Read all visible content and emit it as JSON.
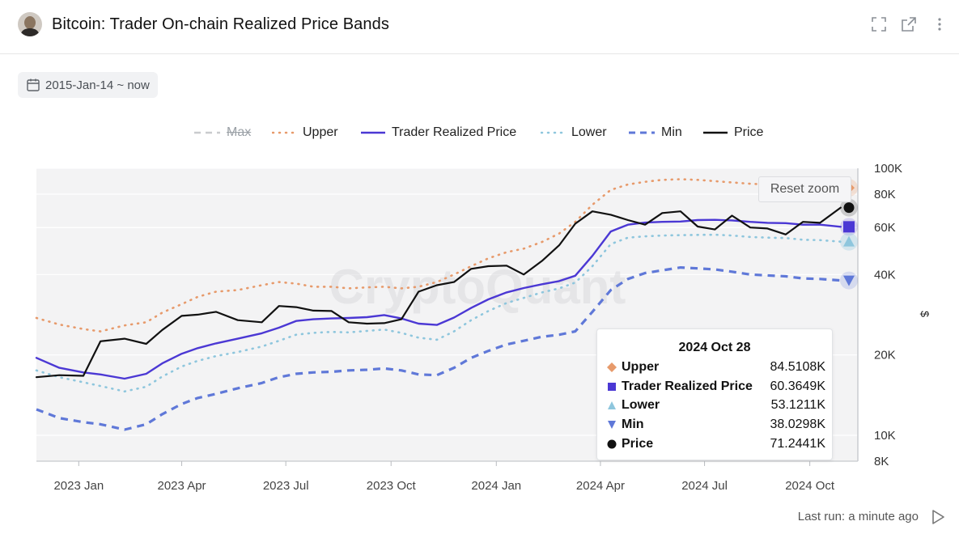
{
  "header": {
    "title": "Bitcoin: Trader On-chain Realized Price Bands",
    "icons": [
      "expand-icon",
      "external-link-icon",
      "more-vertical-icon"
    ]
  },
  "date_range": {
    "label": "2015-Jan-14 ~ now",
    "icon": "calendar-icon"
  },
  "reset_zoom_label": "Reset zoom",
  "watermark": "CryptoQuant",
  "tooltip": {
    "date": "2024 Oct 28",
    "rows": [
      {
        "name": "Upper",
        "value": "84.5108K",
        "marker": "diamond",
        "color": "#e79a6b"
      },
      {
        "name": "Trader Realized Price",
        "value": "60.3649K",
        "marker": "square",
        "color": "#4b38d4"
      },
      {
        "name": "Lower",
        "value": "53.1211K",
        "marker": "triangle-up",
        "color": "#8ec6dd"
      },
      {
        "name": "Min",
        "value": "38.0298K",
        "marker": "triangle-down",
        "color": "#5f78d8"
      },
      {
        "name": "Price",
        "value": "71.2441K",
        "marker": "circle",
        "color": "#111111"
      }
    ]
  },
  "footer": {
    "last_run": "Last run: a minute ago",
    "icon": "play-icon"
  },
  "chart_data": {
    "type": "line",
    "title": "Bitcoin: Trader On-chain Realized Price Bands",
    "xlabel": "",
    "ylabel": "$",
    "y_scale": "log",
    "ylim": [
      8000,
      100000
    ],
    "xlim": [
      "2022-11-25",
      "2024-11-12"
    ],
    "y_ticks": [
      {
        "value": 100000,
        "label": "100K"
      },
      {
        "value": 80000,
        "label": "80K"
      },
      {
        "value": 60000,
        "label": "60K"
      },
      {
        "value": 40000,
        "label": "40K"
      },
      {
        "value": 20000,
        "label": "20K"
      },
      {
        "value": 10000,
        "label": "10K"
      },
      {
        "value": 8000,
        "label": "8K"
      }
    ],
    "x_ticks": [
      {
        "date": "2023-01-01",
        "label": "2023 Jan"
      },
      {
        "date": "2023-04-01",
        "label": "2023 Apr"
      },
      {
        "date": "2023-07-01",
        "label": "2023 Jul"
      },
      {
        "date": "2023-10-01",
        "label": "2023 Oct"
      },
      {
        "date": "2024-01-01",
        "label": "2024 Jan"
      },
      {
        "date": "2024-04-01",
        "label": "2024 Apr"
      },
      {
        "date": "2024-07-01",
        "label": "2024 Jul"
      },
      {
        "date": "2024-10-01",
        "label": "2024 Oct"
      }
    ],
    "grid": true,
    "legend_position": "top",
    "legend": [
      {
        "name": "Max",
        "style": "dashed",
        "color": "#c9cbce",
        "hidden": true
      },
      {
        "name": "Upper",
        "style": "dotted",
        "color": "#e79a6b"
      },
      {
        "name": "Trader Realized Price",
        "style": "solid",
        "color": "#4b38d4"
      },
      {
        "name": "Lower",
        "style": "dotted",
        "color": "#8ec6dd"
      },
      {
        "name": "Min",
        "style": "dashed",
        "color": "#5f78d8"
      },
      {
        "name": "Price",
        "style": "solid",
        "color": "#111111"
      }
    ],
    "x": [
      "2022-11-25",
      "2022-12-15",
      "2023-01-05",
      "2023-01-20",
      "2023-02-10",
      "2023-03-01",
      "2023-03-15",
      "2023-04-01",
      "2023-04-15",
      "2023-05-01",
      "2023-05-20",
      "2023-06-10",
      "2023-06-25",
      "2023-07-10",
      "2023-07-25",
      "2023-08-10",
      "2023-08-25",
      "2023-09-10",
      "2023-09-25",
      "2023-10-10",
      "2023-10-25",
      "2023-11-10",
      "2023-11-25",
      "2023-12-10",
      "2023-12-25",
      "2024-01-10",
      "2024-01-25",
      "2024-02-10",
      "2024-02-25",
      "2024-03-10",
      "2024-03-25",
      "2024-04-10",
      "2024-04-25",
      "2024-05-10",
      "2024-05-25",
      "2024-06-10",
      "2024-06-25",
      "2024-07-10",
      "2024-07-25",
      "2024-08-10",
      "2024-08-25",
      "2024-09-10",
      "2024-09-25",
      "2024-10-10",
      "2024-10-28"
    ],
    "series": [
      {
        "name": "Upper",
        "values": [
          27500,
          26000,
          25000,
          24500,
          25800,
          26500,
          28800,
          31000,
          33000,
          34500,
          35000,
          36500,
          37500,
          37000,
          36000,
          36000,
          35500,
          35800,
          36000,
          35500,
          36000,
          37500,
          40000,
          43000,
          46000,
          48500,
          50000,
          53000,
          57000,
          63000,
          73000,
          83000,
          87000,
          89000,
          90500,
          91000,
          90500,
          89500,
          88500,
          87500,
          87000,
          86500,
          86000,
          85000,
          84510
        ]
      },
      {
        "name": "Trader Realized Price",
        "values": [
          19500,
          17900,
          17200,
          16900,
          16300,
          17000,
          18600,
          20200,
          21200,
          22100,
          23000,
          24100,
          25300,
          26800,
          27200,
          27400,
          27500,
          27700,
          28200,
          27400,
          26200,
          25900,
          27600,
          30000,
          32300,
          34300,
          35600,
          36800,
          37800,
          39600,
          47000,
          58000,
          61500,
          62600,
          63000,
          63200,
          64000,
          64100,
          63800,
          63000,
          62500,
          62300,
          61500,
          61500,
          60365
        ]
      },
      {
        "name": "Lower",
        "values": [
          17500,
          16500,
          15800,
          15300,
          14600,
          15200,
          16600,
          18100,
          19000,
          19800,
          20500,
          21500,
          22600,
          23800,
          24200,
          24400,
          24300,
          24600,
          24900,
          24200,
          23200,
          22800,
          24500,
          27000,
          29200,
          31300,
          32700,
          34300,
          35500,
          37300,
          43000,
          52000,
          55000,
          55600,
          56000,
          56200,
          56300,
          56400,
          56000,
          55300,
          55000,
          54800,
          54000,
          53800,
          53120
        ]
      },
      {
        "name": "Min",
        "values": [
          12500,
          11600,
          11200,
          11000,
          10500,
          11000,
          12000,
          13100,
          13800,
          14300,
          15000,
          15700,
          16500,
          17000,
          17200,
          17300,
          17500,
          17600,
          17800,
          17500,
          16900,
          16800,
          17900,
          19500,
          20700,
          21900,
          22600,
          23400,
          23800,
          24500,
          29000,
          35000,
          38500,
          40500,
          41500,
          42500,
          42200,
          41800,
          41000,
          40000,
          39700,
          39400,
          38700,
          38500,
          38030
        ]
      },
      {
        "name": "Price",
        "values": [
          16500,
          16800,
          16700,
          22500,
          23000,
          22000,
          24800,
          28000,
          28300,
          29000,
          27000,
          26500,
          30500,
          30200,
          29300,
          29200,
          26500,
          26200,
          26300,
          27200,
          34500,
          36500,
          37500,
          42000,
          43000,
          43200,
          40000,
          45000,
          51500,
          62000,
          69000,
          67000,
          64000,
          61500,
          68000,
          69000,
          60500,
          59000,
          66500,
          60000,
          59500,
          56500,
          63000,
          62500,
          71244
        ]
      }
    ]
  }
}
